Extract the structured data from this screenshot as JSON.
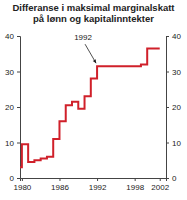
{
  "chart_data": {
    "type": "line",
    "title": "Differanse i maksimal marginalskatt",
    "subtitle": "på lønn og kapitalinntekter",
    "x": [
      1979,
      1980,
      1981,
      1982,
      1983,
      1984,
      1985,
      1986,
      1987,
      1988,
      1989,
      1990,
      1991,
      1992,
      1993,
      1994,
      1995,
      1996,
      1997,
      1998,
      1999,
      2000,
      2001,
      2002
    ],
    "values": [
      3,
      9.5,
      4.5,
      5,
      5.5,
      6,
      11,
      16,
      20.5,
      21.5,
      19.5,
      23,
      28,
      31.5,
      31.5,
      31.5,
      31.5,
      31.5,
      31.5,
      31.5,
      32,
      36.5,
      36.5,
      36.5
    ],
    "color": "#d0202a",
    "line_style": "step",
    "xlim": [
      1979.7,
      2003
    ],
    "xticks": [
      1980,
      1986,
      1992,
      1998,
      2002
    ],
    "ylim": [
      0,
      40
    ],
    "yticks": [
      0,
      10,
      20,
      30,
      40
    ],
    "annotations": [
      {
        "text": "1992",
        "x": 1992,
        "y": 31.5
      }
    ]
  }
}
